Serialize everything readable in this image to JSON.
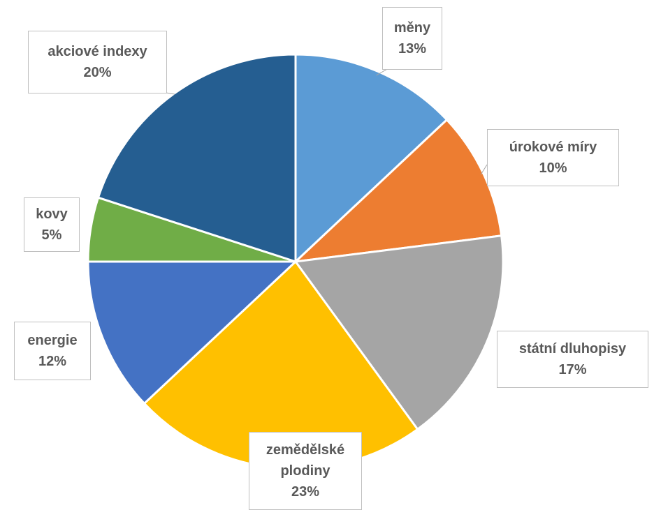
{
  "chart_data": {
    "type": "pie",
    "title": "",
    "slices": [
      {
        "label": "měny",
        "percent_label": "13%",
        "value": 13,
        "color": "#5b9bd5"
      },
      {
        "label": "úrokové míry",
        "percent_label": "10%",
        "value": 10,
        "color": "#ed7d31"
      },
      {
        "label": "státní dluhopisy",
        "percent_label": "17%",
        "value": 17,
        "color": "#a5a5a5"
      },
      {
        "label": "zemědělské plodiny",
        "label_lines": [
          "zemědělské",
          "plodiny"
        ],
        "percent_label": "23%",
        "value": 23,
        "color": "#ffc000"
      },
      {
        "label": "energie",
        "percent_label": "12%",
        "value": 12,
        "color": "#4472c4"
      },
      {
        "label": "kovy",
        "percent_label": "5%",
        "value": 5,
        "color": "#70ad47"
      },
      {
        "label": "akciové indexy",
        "percent_label": "20%",
        "value": 20,
        "color": "#255e91"
      }
    ],
    "start_angle": "12 o'clock",
    "direction": "clockwise",
    "legend": "none",
    "data_labels": "callout boxes with category name and percentage"
  }
}
